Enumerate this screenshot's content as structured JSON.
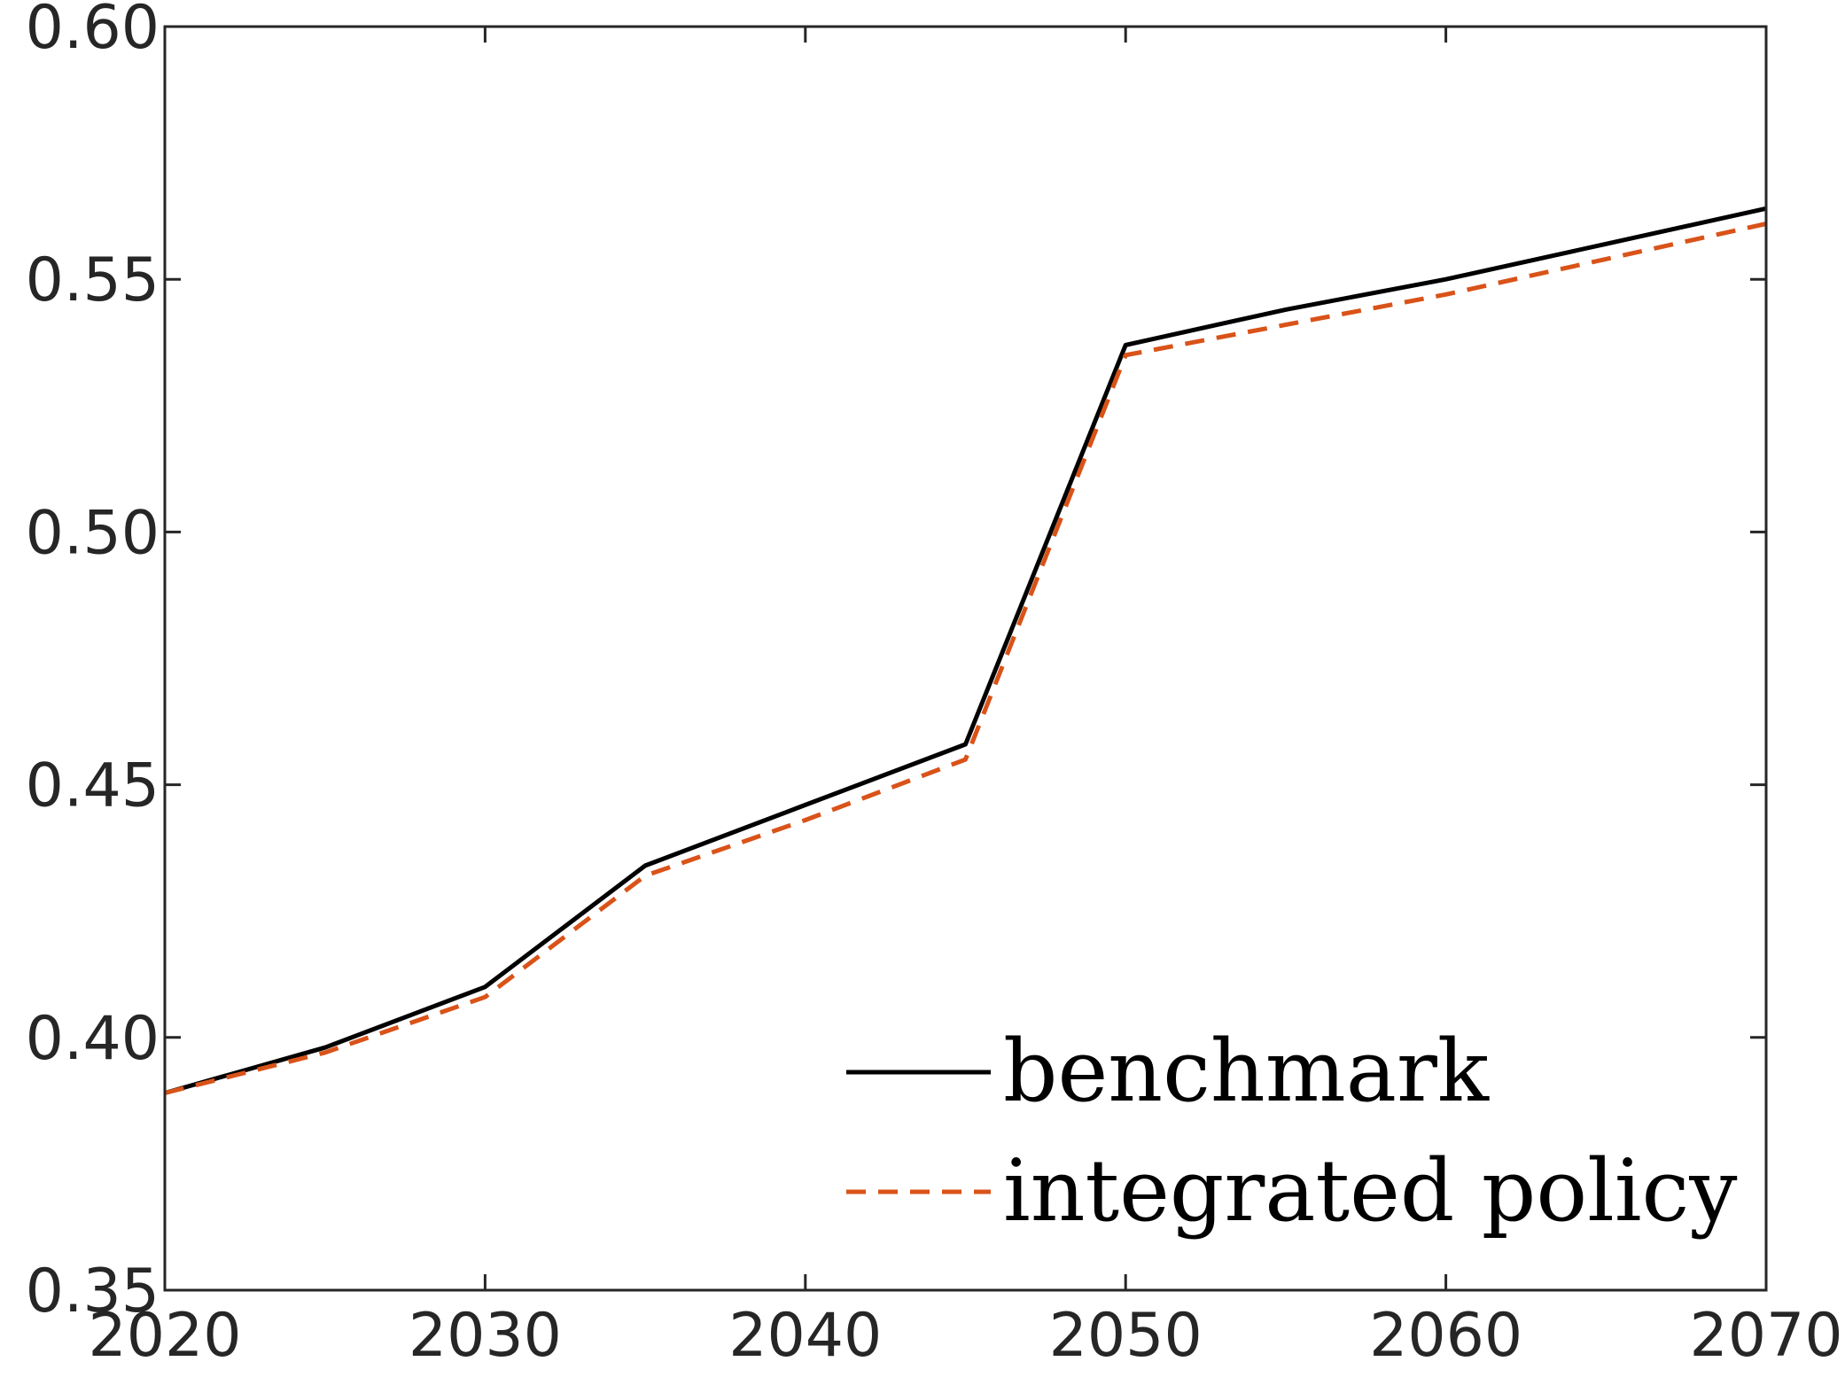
{
  "chart_data": {
    "type": "line",
    "title": "",
    "xlabel": "",
    "ylabel": "",
    "xlim": [
      2020,
      2070
    ],
    "ylim": [
      0.35,
      0.6
    ],
    "x_ticks": [
      2020,
      2030,
      2040,
      2050,
      2060,
      2070
    ],
    "x_tick_labels": [
      "2020",
      "2030",
      "2040",
      "2050",
      "2060",
      "2070"
    ],
    "y_ticks": [
      0.35,
      0.4,
      0.45,
      0.5,
      0.55,
      0.6
    ],
    "y_tick_labels": [
      "0.35",
      "0.40",
      "0.45",
      "0.50",
      "0.55",
      "0.60"
    ],
    "grid": false,
    "legend_position": "bottom-right",
    "x": [
      2020,
      2025,
      2030,
      2035,
      2040,
      2045,
      2050,
      2055,
      2060,
      2065,
      2070
    ],
    "series": [
      {
        "name": "benchmark",
        "color": "#000000",
        "line_style": "solid",
        "values": [
          0.389,
          0.398,
          0.41,
          0.434,
          0.446,
          0.458,
          0.537,
          0.544,
          0.55,
          0.557,
          0.564
        ]
      },
      {
        "name": "integrated policy",
        "color": "#D95319",
        "line_style": "dashed",
        "values": [
          0.389,
          0.397,
          0.408,
          0.432,
          0.443,
          0.455,
          0.535,
          0.541,
          0.547,
          0.554,
          0.561
        ]
      }
    ]
  }
}
